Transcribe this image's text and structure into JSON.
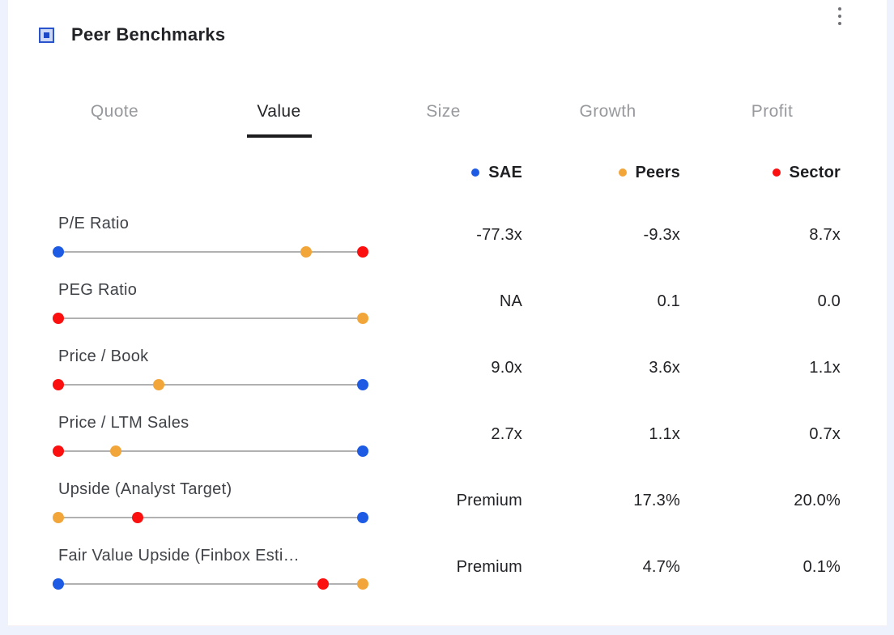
{
  "header": {
    "title": "Peer Benchmarks",
    "icon": "widget-icon",
    "menu_icon": "kebab-menu-icon"
  },
  "tabs": [
    {
      "label": "Quote",
      "active": false
    },
    {
      "label": "Value",
      "active": true
    },
    {
      "label": "Size",
      "active": false
    },
    {
      "label": "Growth",
      "active": false
    },
    {
      "label": "Profit",
      "active": false
    }
  ],
  "colors": {
    "sae": "#1e5be4",
    "peers": "#f2a63a",
    "sector": "#fb0f0f",
    "track": "#b1b1b1",
    "active_tab_underline": "#1c1c1e",
    "page_bg": "#edf2fc"
  },
  "chart_data": {
    "type": "table",
    "title": "Peer Benchmarks",
    "active_tab": "Value",
    "legend_position": "top",
    "series": [
      {
        "key": "sae",
        "label": "SAE",
        "color": "#1e5be4"
      },
      {
        "key": "peers",
        "label": "Peers",
        "color": "#f2a63a"
      },
      {
        "key": "sector",
        "label": "Sector",
        "color": "#fb0f0f"
      }
    ],
    "rows": [
      {
        "metric": "P/E Ratio",
        "values": [
          "-77.3x",
          "-9.3x",
          "8.7x"
        ],
        "dot_pct": [
          0,
          81.5,
          100
        ]
      },
      {
        "metric": "PEG Ratio",
        "values": [
          "NA",
          "0.1",
          "0.0"
        ],
        "dot_pct": [
          null,
          100,
          0
        ]
      },
      {
        "metric": "Price / Book",
        "values": [
          "9.0x",
          "3.6x",
          "1.1x"
        ],
        "dot_pct": [
          100,
          33,
          0
        ]
      },
      {
        "metric": "Price / LTM Sales",
        "values": [
          "2.7x",
          "1.1x",
          "0.7x"
        ],
        "dot_pct": [
          100,
          19,
          0
        ]
      },
      {
        "metric": "Upside (Analyst Target)",
        "values": [
          "Premium",
          "17.3%",
          "20.0%"
        ],
        "dot_pct": [
          100,
          0,
          26
        ]
      },
      {
        "metric": "Fair Value Upside (Finbox Esti…",
        "values": [
          "Premium",
          "4.7%",
          "0.1%"
        ],
        "dot_pct": [
          0,
          100,
          87
        ]
      }
    ]
  }
}
